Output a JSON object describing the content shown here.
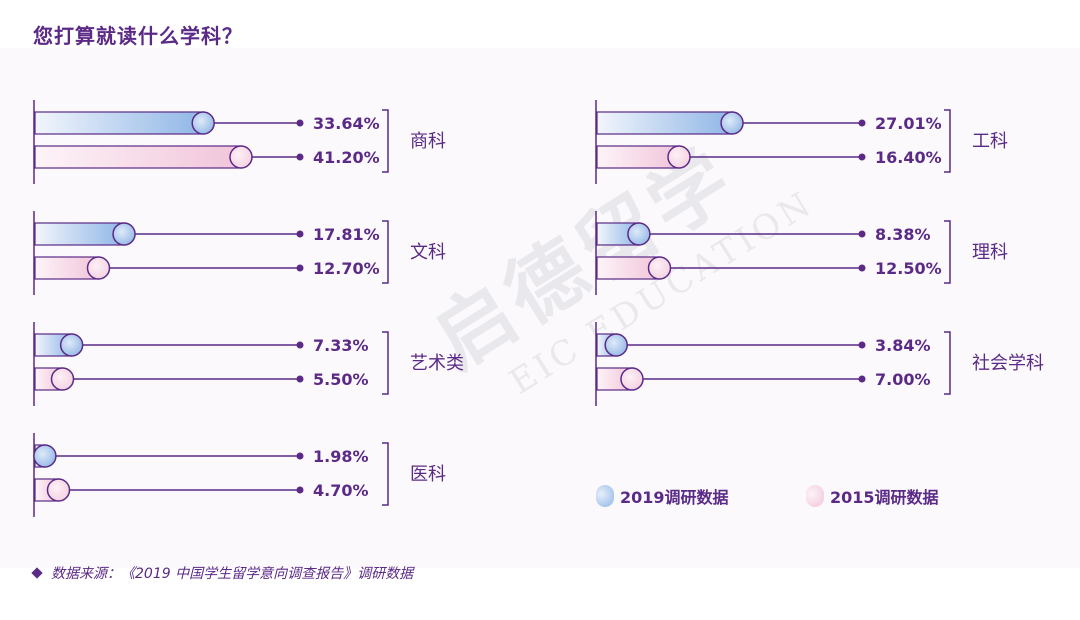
{
  "title": "您打算就读什么学科？",
  "source": "数据来源：《2019 中国学生留学意向调查报告》调研数据",
  "watermark": {
    "cn": "启德留学",
    "en": "EIC EDUCATION"
  },
  "colors": {
    "purple": "#5b2a86",
    "blue_fill_start": "#eef2fb",
    "blue_fill_end": "#8fb6e6",
    "pink_fill_start": "#fbeff5",
    "pink_fill_end": "#f1c4da"
  },
  "legend": [
    {
      "label": "2019调研数据",
      "color": "#8fb6e6"
    },
    {
      "label": "2015调研数据",
      "color": "#f1c4da"
    }
  ],
  "chart_data": {
    "type": "bar",
    "title": "您打算就读什么学科？",
    "unit": "%",
    "series": [
      {
        "name": "2019调研数据"
      },
      {
        "name": "2015调研数据"
      }
    ],
    "groups": [
      {
        "category": "商科",
        "values": [
          33.64,
          41.2
        ],
        "labels": [
          "33.64%",
          "41.20%"
        ]
      },
      {
        "category": "文科",
        "values": [
          17.81,
          12.7
        ],
        "labels": [
          "17.81%",
          "12.70%"
        ]
      },
      {
        "category": "艺术类",
        "values": [
          7.33,
          5.5
        ],
        "labels": [
          "7.33%",
          "5.50%"
        ]
      },
      {
        "category": "医科",
        "values": [
          1.98,
          4.7
        ],
        "labels": [
          "1.98%",
          "4.70%"
        ]
      },
      {
        "category": "工科",
        "values": [
          27.01,
          16.4
        ],
        "labels": [
          "27.01%",
          "16.40%"
        ]
      },
      {
        "category": "理科",
        "values": [
          8.38,
          12.5
        ],
        "labels": [
          "8.38%",
          "12.50%"
        ]
      },
      {
        "category": "社会学科",
        "values": [
          3.84,
          7.0
        ],
        "labels": [
          "3.84%",
          "7.00%"
        ]
      }
    ]
  }
}
